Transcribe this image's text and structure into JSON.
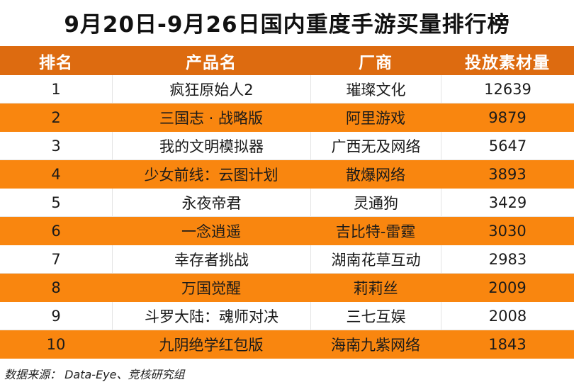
{
  "title": "9月20日-9月26日国内重度手游买量排行榜",
  "table": {
    "headers": [
      "排名",
      "产品名",
      "厂商",
      "投放素材量"
    ],
    "rows": [
      {
        "rank": "1",
        "product": "疯狂原始人2",
        "vendor": "璀璨文化",
        "count": "12639"
      },
      {
        "rank": "2",
        "product": "三国志 · 战略版",
        "vendor": "阿里游戏",
        "count": "9879"
      },
      {
        "rank": "3",
        "product": "我的文明模拟器",
        "vendor": "广西无及网络",
        "count": "5647"
      },
      {
        "rank": "4",
        "product": "少女前线：云图计划",
        "vendor": "散爆网络",
        "count": "3893"
      },
      {
        "rank": "5",
        "product": "永夜帝君",
        "vendor": "灵通狗",
        "count": "3429"
      },
      {
        "rank": "6",
        "product": "一念逍遥",
        "vendor": "吉比特-雷霆",
        "count": "3030"
      },
      {
        "rank": "7",
        "product": "幸存者挑战",
        "vendor": "湖南花草互动",
        "count": "2983"
      },
      {
        "rank": "8",
        "product": "万国觉醒",
        "vendor": "莉莉丝",
        "count": "2009"
      },
      {
        "rank": "9",
        "product": "斗罗大陆：魂师对决",
        "vendor": "三七互娱",
        "count": "2008"
      },
      {
        "rank": "10",
        "product": "九阴绝学红包版",
        "vendor": "海南九紫网络",
        "count": "1843"
      }
    ]
  },
  "source": "数据来源： Data-Eye、竞核研究组",
  "colors": {
    "header_bg": "#dd6b10",
    "stripe_bg": "#f9860f",
    "row_bg": "#ffffff"
  }
}
